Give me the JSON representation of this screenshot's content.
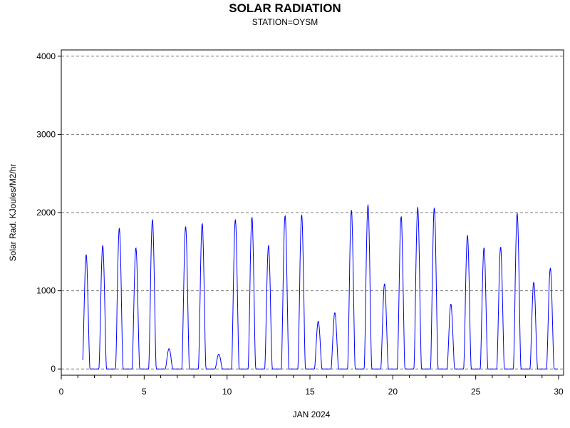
{
  "chart_data": {
    "type": "line",
    "title": "SOLAR RADIATION",
    "subtitle": "STATION=OYSM",
    "xlabel": "JAN 2024",
    "ylabel": "Solar Rad. KJoules/M2/hr",
    "xlim": [
      0,
      30.3
    ],
    "ylim": [
      -80,
      4080
    ],
    "x_ticks": [
      0,
      5,
      10,
      15,
      20,
      25,
      30
    ],
    "x_minor_step": 1,
    "y_ticks": [
      0,
      1000,
      2000,
      3000,
      4000
    ],
    "grid": "horizontal dashed",
    "line_color": "#0000ff",
    "days": [
      {
        "day": 1,
        "peak": 1460
      },
      {
        "day": 2,
        "peak": 1580
      },
      {
        "day": 3,
        "peak": 1800
      },
      {
        "day": 4,
        "peak": 1550
      },
      {
        "day": 5,
        "peak": 1910
      },
      {
        "day": 6,
        "peak": 260
      },
      {
        "day": 7,
        "peak": 1820
      },
      {
        "day": 8,
        "peak": 1860
      },
      {
        "day": 9,
        "peak": 190
      },
      {
        "day": 10,
        "peak": 1910
      },
      {
        "day": 11,
        "peak": 1940
      },
      {
        "day": 12,
        "peak": 1580
      },
      {
        "day": 13,
        "peak": 1960
      },
      {
        "day": 14,
        "peak": 1970
      },
      {
        "day": 15,
        "peak": 610
      },
      {
        "day": 16,
        "peak": 720
      },
      {
        "day": 17,
        "peak": 2030
      },
      {
        "day": 18,
        "peak": 2100
      },
      {
        "day": 19,
        "peak": 1090
      },
      {
        "day": 20,
        "peak": 1950
      },
      {
        "day": 21,
        "peak": 2070
      },
      {
        "day": 22,
        "peak": 2060
      },
      {
        "day": 23,
        "peak": 830
      },
      {
        "day": 24,
        "peak": 1710
      },
      {
        "day": 25,
        "peak": 1550
      },
      {
        "day": 26,
        "peak": 1560
      },
      {
        "day": 27,
        "peak": 1990
      },
      {
        "day": 28,
        "peak": 1110
      },
      {
        "day": 29,
        "peak": 1290
      }
    ]
  }
}
